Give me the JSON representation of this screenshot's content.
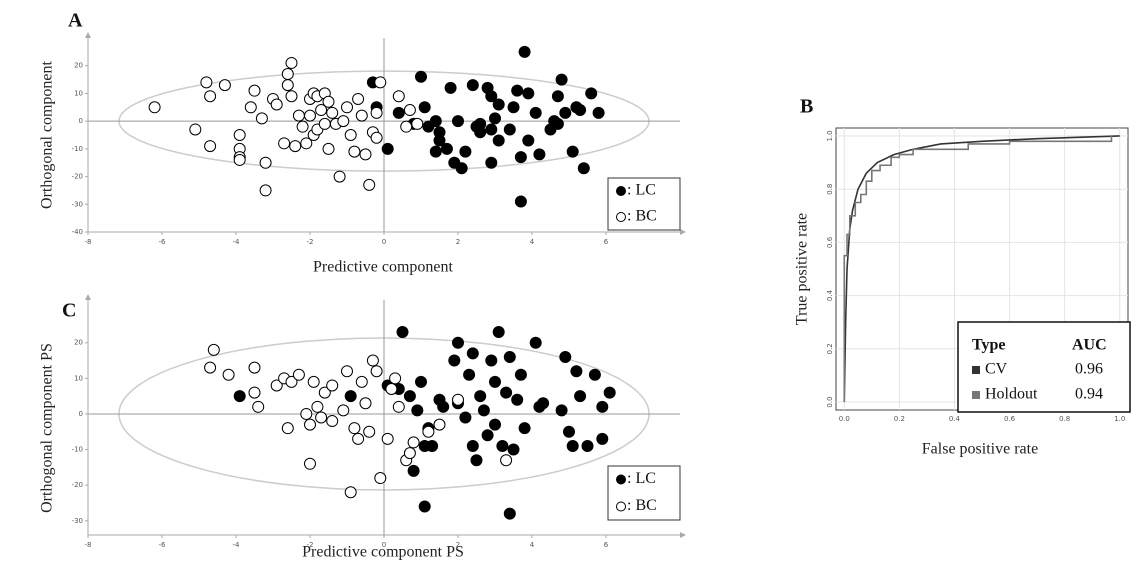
{
  "chart_data": [
    {
      "type": "scatter",
      "label": "A",
      "x_label": "Predictive component",
      "y_label": "Orthogonal component",
      "xlim": [
        -8,
        8
      ],
      "ylim": [
        -40,
        30
      ],
      "xticks": [
        -8,
        -6,
        -4,
        -2,
        0,
        2,
        4,
        6
      ],
      "yticks": [
        -40,
        -30,
        -20,
        -10,
        0,
        10,
        20
      ],
      "series": [
        {
          "name": ": LC",
          "color": "#000000",
          "x": [
            -0.3,
            -0.2,
            0.1,
            0.4,
            0.8,
            1.0,
            1.1,
            1.2,
            1.4,
            1.7,
            1.8,
            1.9,
            2.0,
            2.1,
            2.2,
            2.4,
            2.5,
            2.6,
            2.8,
            2.9,
            2.9,
            2.9,
            3.1,
            3.1,
            3.4,
            3.5,
            3.6,
            3.7,
            3.7,
            3.8,
            3.9,
            3.9,
            4.1,
            4.2,
            4.5,
            4.6,
            4.7,
            4.8,
            4.9,
            5.1,
            5.2,
            5.4,
            5.6,
            5.8,
            3.0,
            1.5,
            1.5,
            4.7,
            5.3,
            2.6,
            1.4
          ],
          "values": [
            14,
            5,
            -10,
            3,
            -1,
            16,
            5,
            -2,
            -11,
            -10,
            12,
            -15,
            0,
            -17,
            -11,
            13,
            -2,
            -1,
            12,
            9,
            -15,
            -3,
            -7,
            6,
            -3,
            5,
            11,
            -13,
            -29,
            25,
            -7,
            10,
            3,
            -12,
            -3,
            0,
            9,
            15,
            3,
            -11,
            5,
            -17,
            10,
            3,
            1,
            -7,
            -4,
            -1,
            4,
            -4,
            0
          ]
        },
        {
          "name": ": BC",
          "color": "#ffffff",
          "x": [
            -6.2,
            -5.1,
            -4.8,
            -4.7,
            -4.7,
            -4.3,
            -3.9,
            -3.9,
            -3.9,
            -3.9,
            -3.6,
            -3.5,
            -3.3,
            -3.2,
            -3.2,
            -3.0,
            -2.9,
            -2.7,
            -2.6,
            -2.6,
            -2.5,
            -2.5,
            -2.4,
            -2.3,
            -2.2,
            -2.1,
            -2.0,
            -2.0,
            -1.9,
            -1.9,
            -1.8,
            -1.8,
            -1.7,
            -1.6,
            -1.6,
            -1.5,
            -1.5,
            -1.4,
            -1.3,
            -1.2,
            -1.1,
            -1.0,
            -0.9,
            -0.8,
            -0.7,
            -0.6,
            -0.5,
            -0.4,
            -0.3,
            -0.2,
            -0.1,
            0.4,
            0.6,
            0.7,
            -0.2,
            0.9
          ],
          "values": [
            5,
            -3,
            14,
            9,
            -9,
            13,
            -5,
            -10,
            -13,
            -14,
            5,
            11,
            1,
            -15,
            -25,
            8,
            6,
            -8,
            17,
            13,
            21,
            9,
            -9,
            2,
            -2,
            -8,
            8,
            2,
            10,
            -5,
            -3,
            9,
            4,
            -1,
            10,
            7,
            -10,
            3,
            -1,
            -20,
            0,
            5,
            -5,
            -11,
            8,
            2,
            -12,
            -23,
            -4,
            -6,
            14,
            9,
            -2,
            4,
            3,
            -1
          ]
        }
      ]
    },
    {
      "type": "line",
      "label": "B",
      "x_label": "False positive rate",
      "y_label": "True positive rate",
      "xlim": [
        -0.03,
        1.03
      ],
      "ylim": [
        -0.03,
        1.03
      ],
      "xticks": [
        {
          "value": 0,
          "label": "0.0"
        },
        0.2,
        0.4,
        0.6,
        0.8,
        {
          "value": 1,
          "label": "1.0"
        }
      ],
      "yticks": [
        {
          "value": 0,
          "label": "0.0"
        },
        0.2,
        0.4,
        0.6,
        0.8,
        {
          "value": 1,
          "label": "1.0"
        }
      ],
      "grid": true,
      "legend_headers": [
        "Type",
        "AUC"
      ],
      "series": [
        {
          "name": "CV",
          "color": "#333333",
          "auc": 0.96,
          "x": [
            0,
            0.005,
            0.01,
            0.02,
            0.03,
            0.05,
            0.08,
            0.12,
            0.18,
            0.25,
            0.35,
            0.5,
            0.7,
            0.85,
            1.0
          ],
          "values": [
            0,
            0.3,
            0.5,
            0.65,
            0.72,
            0.8,
            0.86,
            0.9,
            0.93,
            0.95,
            0.97,
            0.98,
            0.99,
            0.995,
            1.0
          ]
        },
        {
          "name": "Holdout",
          "color": "#777777",
          "auc": 0.94,
          "x": [
            0,
            0,
            0.01,
            0.01,
            0.02,
            0.02,
            0.04,
            0.04,
            0.06,
            0.06,
            0.08,
            0.08,
            0.1,
            0.1,
            0.13,
            0.13,
            0.17,
            0.17,
            0.2,
            0.2,
            0.25,
            0.25,
            0.45,
            0.45,
            0.6,
            0.6,
            0.97,
            0.97
          ],
          "values": [
            0,
            0.55,
            0.55,
            0.63,
            0.63,
            0.7,
            0.7,
            0.75,
            0.75,
            0.78,
            0.78,
            0.83,
            0.83,
            0.87,
            0.87,
            0.89,
            0.89,
            0.92,
            0.92,
            0.93,
            0.93,
            0.95,
            0.95,
            0.97,
            0.97,
            0.98,
            0.98,
            1.0
          ]
        }
      ]
    },
    {
      "type": "scatter",
      "label": "C",
      "x_label": "Predictive component PS",
      "y_label": "Orthogonal component PS",
      "xlim": [
        -8,
        8
      ],
      "ylim": [
        -34,
        32
      ],
      "xticks": [
        -8,
        -6,
        -4,
        -2,
        0,
        2,
        4,
        6
      ],
      "yticks": [
        -30,
        -20,
        -10,
        0,
        10,
        20
      ],
      "series": [
        {
          "name": ": LC",
          "color": "#000000",
          "x": [
            -3.9,
            -0.9,
            0.1,
            0.4,
            0.5,
            0.7,
            0.8,
            0.9,
            1.0,
            1.1,
            1.1,
            1.2,
            1.3,
            1.5,
            1.6,
            1.9,
            2.0,
            2.0,
            2.2,
            2.3,
            2.4,
            2.4,
            2.5,
            2.6,
            2.7,
            2.9,
            3.0,
            3.0,
            3.1,
            3.2,
            3.3,
            3.4,
            3.4,
            3.5,
            3.6,
            3.8,
            4.1,
            4.2,
            4.3,
            4.9,
            5.0,
            5.1,
            5.2,
            5.3,
            5.5,
            5.7,
            5.9,
            6.1,
            5.9,
            4.8,
            3.7,
            2.8
          ],
          "values": [
            5,
            5,
            8,
            7,
            23,
            5,
            -16,
            1,
            9,
            -26,
            -9,
            -4,
            -9,
            4,
            2,
            15,
            20,
            3,
            -1,
            11,
            17,
            -9,
            -13,
            5,
            1,
            15,
            -3,
            9,
            23,
            -9,
            6,
            16,
            -28,
            -10,
            4,
            -4,
            20,
            2,
            3,
            16,
            -5,
            -9,
            12,
            5,
            -9,
            11,
            2,
            6,
            -7,
            1,
            11,
            -6
          ]
        },
        {
          "name": ": BC",
          "color": "#ffffff",
          "x": [
            -4.7,
            -4.6,
            -4.2,
            -3.5,
            -3.4,
            -3.5,
            -2.9,
            -2.7,
            -2.6,
            -2.5,
            -2.3,
            -2.1,
            -2.0,
            -2.0,
            -1.9,
            -1.8,
            -1.7,
            -1.6,
            -1.4,
            -1.4,
            -1.1,
            -1.0,
            -0.9,
            -0.8,
            -0.7,
            -0.6,
            -0.4,
            -0.3,
            -0.2,
            -0.1,
            0.1,
            0.2,
            0.4,
            0.6,
            0.7,
            0.8,
            1.2,
            1.5,
            2.0,
            3.3,
            -0.5,
            0.3
          ],
          "values": [
            13,
            18,
            11,
            13,
            2,
            6,
            8,
            10,
            -4,
            9,
            11,
            0,
            -14,
            -3,
            9,
            2,
            -1,
            6,
            -2,
            8,
            1,
            12,
            -22,
            -4,
            -7,
            9,
            -5,
            15,
            12,
            -18,
            -7,
            7,
            2,
            -13,
            -11,
            -8,
            -5,
            -3,
            4,
            -13,
            3,
            10
          ]
        }
      ]
    }
  ]
}
